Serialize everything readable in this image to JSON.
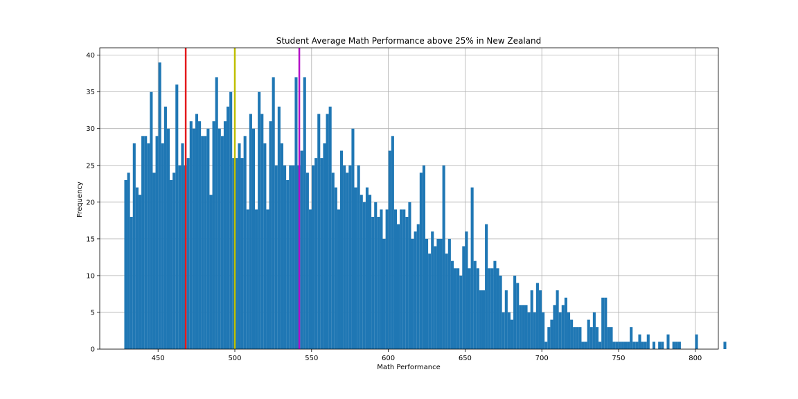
{
  "chart_data": {
    "type": "bar",
    "title": "Student Average Math Performance above 25% in New Zealand",
    "xlabel": "Math Performance",
    "ylabel": "Frequency",
    "xlim": [
      412,
      815
    ],
    "ylim": [
      0,
      41
    ],
    "x_ticks": [
      450,
      500,
      550,
      600,
      650,
      700,
      750,
      800
    ],
    "y_ticks": [
      0,
      5,
      10,
      15,
      20,
      25,
      30,
      35,
      40
    ],
    "grid": true,
    "bar_color": "#1f77b4",
    "grid_color": "#b0b0b0",
    "bin_start": 428,
    "bin_width": 1.85,
    "values": [
      23,
      24,
      18,
      28,
      22,
      21,
      29,
      29,
      28,
      35,
      24,
      29,
      39,
      28,
      33,
      30,
      23,
      24,
      36,
      25,
      28,
      25,
      26,
      31,
      30,
      32,
      31,
      29,
      29,
      30,
      21,
      31,
      37,
      30,
      29,
      31,
      33,
      35,
      26,
      26,
      28,
      26,
      29,
      19,
      32,
      30,
      19,
      35,
      32,
      28,
      19,
      31,
      37,
      25,
      33,
      28,
      25,
      23,
      25,
      25,
      37,
      25,
      27,
      37,
      24,
      19,
      25,
      26,
      32,
      26,
      28,
      32,
      33,
      24,
      22,
      19,
      27,
      25,
      24,
      25,
      30,
      22,
      25,
      21,
      20,
      22,
      21,
      18,
      20,
      18,
      19,
      15,
      19,
      27,
      29,
      19,
      17,
      19,
      19,
      18,
      20,
      15,
      16,
      17,
      24,
      25,
      15,
      13,
      16,
      14,
      15,
      15,
      25,
      13,
      15,
      12,
      11,
      11,
      10,
      14,
      16,
      11,
      22,
      12,
      11,
      8,
      8,
      17,
      11,
      11,
      12,
      11,
      10,
      5,
      8,
      5,
      4,
      10,
      9,
      6,
      6,
      6,
      5,
      8,
      5,
      9,
      8,
      5,
      1,
      3,
      4,
      6,
      8,
      5,
      6,
      7,
      5,
      4,
      3,
      3,
      3,
      1,
      1,
      4,
      3,
      5,
      3,
      1,
      7,
      7,
      3,
      3,
      1,
      1,
      1,
      1,
      1,
      1,
      3,
      1,
      1,
      2,
      1,
      1,
      2,
      0,
      1,
      0,
      1,
      1,
      0,
      2,
      0,
      1,
      1,
      1,
      0,
      0,
      0,
      0,
      0,
      2,
      0,
      0,
      0,
      0,
      0,
      0,
      0,
      0,
      0,
      1
    ],
    "vlines": [
      {
        "x": 468,
        "color": "#e41a1c"
      },
      {
        "x": 500,
        "color": "#bfbf00"
      },
      {
        "x": 542,
        "color": "#b30ec7"
      }
    ]
  }
}
